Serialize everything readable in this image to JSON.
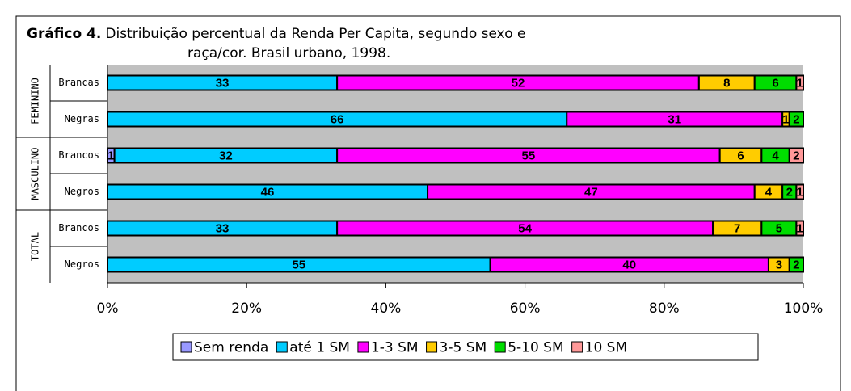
{
  "chart_data": {
    "type": "stacked_barh",
    "title": {
      "bold": "Gráfico 4.",
      "lines": [
        "Distribuição percentual da Renda Per Capita, segundo sexo e",
        "raça/cor. Brasil urbano, 1998."
      ]
    },
    "groups": [
      {
        "name": "FEMININO",
        "rows": [
          0,
          1
        ]
      },
      {
        "name": "MASCULINO",
        "rows": [
          2,
          3
        ]
      },
      {
        "name": "TOTAL",
        "rows": [
          4,
          5
        ]
      }
    ],
    "categories": [
      "Brancas",
      "Negras",
      "Brancos",
      "Negros",
      "Brancos",
      "Negros"
    ],
    "series": [
      {
        "name": "Sem renda",
        "color": "#9999ff",
        "values": [
          0,
          0,
          1,
          0,
          0,
          0
        ]
      },
      {
        "name": "até 1 SM",
        "color": "#00ccff",
        "values": [
          33,
          66,
          32,
          46,
          33,
          55
        ]
      },
      {
        "name": "1-3 SM",
        "color": "#ff00ff",
        "values": [
          52,
          31,
          55,
          47,
          54,
          40
        ]
      },
      {
        "name": "3-5 SM",
        "color": "#ffcc00",
        "values": [
          8,
          1,
          6,
          4,
          7,
          3
        ]
      },
      {
        "name": "5-10 SM",
        "color": "#00dd00",
        "values": [
          6,
          2,
          4,
          2,
          5,
          2
        ]
      },
      {
        "name": "10 SM",
        "color": "#ff9999",
        "values": [
          1,
          0,
          2,
          1,
          1,
          0
        ]
      }
    ],
    "xlim": [
      0,
      100
    ],
    "xticks": [
      {
        "value": 0,
        "label": "0%"
      },
      {
        "value": 20,
        "label": "20%"
      },
      {
        "value": 40,
        "label": "40%"
      },
      {
        "value": 60,
        "label": "60%"
      },
      {
        "value": 80,
        "label": "80%"
      },
      {
        "value": 100,
        "label": "100%"
      }
    ]
  }
}
